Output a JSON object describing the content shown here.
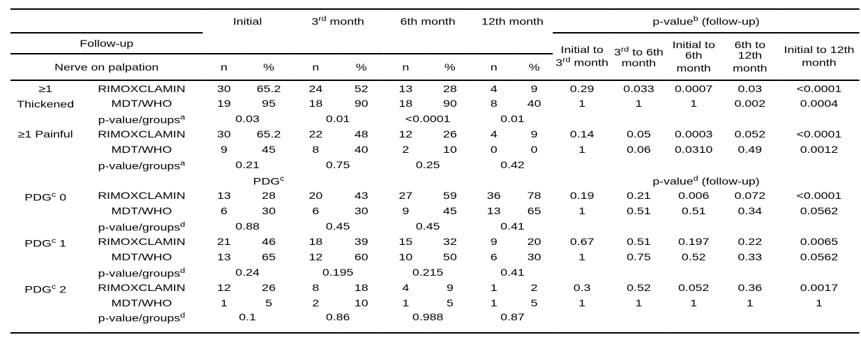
{
  "title": "Nerve on palpation follow-up comparison table",
  "colors": {
    "text": "#000000",
    "rule": "#000000",
    "background": "#ffffff"
  },
  "table": {
    "header": {
      "followup": "Follow-up",
      "nerve": "Nerve on palpation",
      "n": "n",
      "pct": "%",
      "months": [
        {
          "pre": "Initial"
        },
        {
          "pre": "3",
          "sup": "rd",
          "post": " month"
        },
        {
          "pre": "6th month"
        },
        {
          "pre": "12th month"
        }
      ],
      "pvalue_group": {
        "pre": "p-value",
        "sup": "b",
        "post": " (follow-up)"
      },
      "pvalue_cols": [
        {
          "pre": "Initial to 3",
          "sup": "rd",
          "post": " month"
        },
        {
          "pre": "3",
          "sup": "rd",
          "post": " to 6th month"
        },
        {
          "pre": "Initial to 6th month"
        },
        {
          "pre": "6th to 12th month"
        },
        {
          "pre": "Initial to 12th month"
        }
      ]
    },
    "rows": [
      {
        "kind": "data",
        "group": "≥1\nThickened",
        "label": {
          "pre": "RIMOXCLAMIN"
        },
        "cells": [
          "30",
          "65.2",
          "24",
          "52",
          "13",
          "28",
          "4",
          "9"
        ],
        "p": [
          "0.29",
          "0.033",
          "0.0007",
          "0.03",
          "<0.0001"
        ]
      },
      {
        "kind": "data",
        "label": {
          "pre": "MDT/WHO"
        },
        "cells": [
          "19",
          "95",
          "18",
          "90",
          "18",
          "90",
          "8",
          "40"
        ],
        "p": [
          "1",
          "1",
          "1",
          "0.002",
          "0.0004"
        ]
      },
      {
        "kind": "merged",
        "label": {
          "pre": "p-value/groups",
          "sup": "a"
        },
        "cells": [
          "0.03",
          "0.01",
          "<0.0001",
          "0.01"
        ]
      },
      {
        "kind": "data",
        "group": "≥1 Painful",
        "label": {
          "pre": "RIMOXCLAMIN"
        },
        "cells": [
          "30",
          "65.2",
          "22",
          "48",
          "12",
          "26",
          "4",
          "9"
        ],
        "p": [
          "0.14",
          "0.05",
          "0.0003",
          "0.052",
          "<0.0001"
        ]
      },
      {
        "kind": "data",
        "label": {
          "pre": "MDT/WHO"
        },
        "cells": [
          "9",
          "45",
          "8",
          "40",
          "2",
          "10",
          "0",
          "0"
        ],
        "p": [
          "1",
          "0.06",
          "0.0310",
          "0.49",
          "0.0012"
        ]
      },
      {
        "kind": "merged",
        "label": {
          "pre": "p-value/groups",
          "sup": "a"
        },
        "cells": [
          "0.21",
          "0.75",
          "0.25",
          "0.42"
        ]
      },
      {
        "kind": "subheader",
        "left": {
          "pre": "PDG",
          "sup": "c"
        },
        "right": {
          "pre": "p-value",
          "sup": "d",
          "post": " (follow-up)"
        }
      },
      {
        "kind": "data",
        "group": {
          "pre": "PDG",
          "sup": "c",
          "post": " 0"
        },
        "label": {
          "pre": "RIMOXCLAMIN"
        },
        "cells": [
          "13",
          "28",
          "20",
          "43",
          "27",
          "59",
          "36",
          "78"
        ],
        "p": [
          "0.19",
          "0.21",
          "0.006",
          "0.072",
          "<0.0001"
        ]
      },
      {
        "kind": "data",
        "label": {
          "pre": "MDT/WHO"
        },
        "cells": [
          "6",
          "30",
          "6",
          "30",
          "9",
          "45",
          "13",
          "65"
        ],
        "p": [
          "1",
          "0.51",
          "0.51",
          "0.34",
          "0.0562"
        ]
      },
      {
        "kind": "merged",
        "label": {
          "pre": "p-value/groups",
          "sup": "d"
        },
        "cells": [
          "0.88",
          "0.45",
          "0.45",
          "0.41"
        ]
      },
      {
        "kind": "data",
        "group": {
          "pre": "PDG",
          "sup": "c",
          "post": " 1"
        },
        "label": {
          "pre": "RIMOXCLAMIN"
        },
        "cells": [
          "21",
          "46",
          "18",
          "39",
          "15",
          "32",
          "9",
          "20"
        ],
        "p": [
          "0.67",
          "0.51",
          "0.197",
          "0.22",
          "0.0065"
        ]
      },
      {
        "kind": "data",
        "label": {
          "pre": "MDT/WHO"
        },
        "cells": [
          "13",
          "65",
          "12",
          "60",
          "10",
          "50",
          "6",
          "30"
        ],
        "p": [
          "1",
          "0.75",
          "0.52",
          "0.33",
          "0.0562"
        ]
      },
      {
        "kind": "merged",
        "label": {
          "pre": "p-value/groups",
          "sup": "d"
        },
        "cells": [
          "0.24",
          "0.195",
          "0.215",
          "0.41"
        ]
      },
      {
        "kind": "data",
        "group": {
          "pre": "PDG",
          "sup": "c",
          "post": " 2"
        },
        "label": {
          "pre": "RIMOXCLAMIN"
        },
        "cells": [
          "12",
          "26",
          "8",
          "18",
          "4",
          "9",
          "1",
          "2"
        ],
        "p": [
          "0.3",
          "0.52",
          "0.052",
          "0.36",
          "0.0017"
        ]
      },
      {
        "kind": "data",
        "label": {
          "pre": "MDT/WHO"
        },
        "cells": [
          "1",
          "5",
          "2",
          "10",
          "1",
          "5",
          "1",
          "5"
        ],
        "p": [
          "1",
          "1",
          "1",
          "1",
          "1"
        ]
      },
      {
        "kind": "merged",
        "label": {
          "pre": "p-value/groups",
          "sup": "d"
        },
        "cells": [
          "0.1",
          "0.86",
          "0.988",
          "0.87"
        ]
      }
    ]
  }
}
